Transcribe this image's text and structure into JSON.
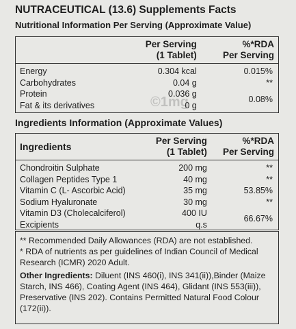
{
  "header": {
    "title": "NUTRACEUTICAL (13.6) Supplements Facts",
    "subtitle": "Nutritional Information Per Serving (Approximate Value)"
  },
  "nutrition": {
    "columns": [
      [
        "Per Serving",
        "(1 Tablet)"
      ],
      [
        "%*RDA",
        "Per Serving"
      ]
    ],
    "rows": [
      [
        "Energy",
        "0.304 kcal",
        "0.015%"
      ],
      [
        "Carbohydrates",
        "0.04 g",
        "**"
      ],
      [
        "Protein",
        "0.036 g",
        "0.08%"
      ],
      [
        "Fat & its derivatives",
        "0 g"
      ]
    ],
    "watermark": "©1mg"
  },
  "ingredients": {
    "title": "Ingredients Information (Approximate Values)",
    "label_header": "Ingredients",
    "columns": [
      [
        "Per Serving",
        "(1 Tablet)"
      ],
      [
        "%*RDA",
        "Per Serving"
      ]
    ],
    "rows": [
      [
        "Chondroitin Sulphate",
        "200 mg",
        "**"
      ],
      [
        "Collagen Peptides Type 1",
        "40 mg",
        "**"
      ],
      [
        "Vitamin C (L- Ascorbic Acid)",
        "35 mg",
        "53.85%"
      ],
      [
        "Sodium Hyaluronate",
        "30 mg",
        "**"
      ],
      [
        "Vitamin D3 (Cholecalciferol)",
        "400 IU",
        "66.67%"
      ],
      [
        "Excipients",
        "q.s"
      ]
    ]
  },
  "notes": {
    "lines": [
      "** Recommended Daily Allowances (RDA) are not established.",
      "* RDA of nutrients as per guidelines of Indian Council of Medical Research (ICMR) 2020 Adult."
    ],
    "other_label": "Other Ingredients:",
    "other_text": "Diluent (INS 460(i), INS 341(ii)),Binder (Maize Starch, INS 466), Coating Agent (INS 464), Glidant (INS 553(iii)), Preservative (INS 202). Contains Permitted Natural Food Colour (172(ii))."
  }
}
